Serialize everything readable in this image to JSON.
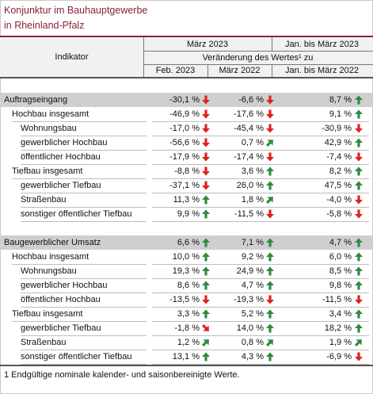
{
  "title_line1": "Konjunktur im Bauhauptgewerbe",
  "title_line2": "in Rheinland-Pfalz",
  "header": {
    "indikator": "Indikator",
    "maerz_2023": "März 2023",
    "jan_maerz_2023": "Jan. bis März 2023",
    "veraenderung": "Veränderung des Wertes¹ zu",
    "feb_2023": "Feb. 2023",
    "maerz_2022": "März 2022",
    "jan_maerz_2022": "Jan. bis März 2022"
  },
  "colors": {
    "up": "#2e8b3e",
    "down": "#e02020",
    "title": "#8b2335",
    "section_bg": "#cfcfcf"
  },
  "rows": [
    {
      "label": "Auftragseingang",
      "level": 0,
      "section": true,
      "v": [
        [
          "-30,1 %",
          "down"
        ],
        [
          "-6,6 %",
          "down"
        ],
        [
          "8,7 %",
          "up"
        ]
      ]
    },
    {
      "label": "Hochbau insgesamt",
      "level": 1,
      "v": [
        [
          "-46,9 %",
          "down"
        ],
        [
          "-17,6 %",
          "down"
        ],
        [
          "9,1 %",
          "up"
        ]
      ]
    },
    {
      "label": "Wohnungsbau",
      "level": 2,
      "v": [
        [
          "-17,0 %",
          "down"
        ],
        [
          "-45,4 %",
          "down"
        ],
        [
          "-30,9 %",
          "down"
        ]
      ]
    },
    {
      "label": "gewerblicher Hochbau",
      "level": 2,
      "v": [
        [
          "-56,6 %",
          "down"
        ],
        [
          "0,7 %",
          "up-right"
        ],
        [
          "42,9 %",
          "up"
        ]
      ]
    },
    {
      "label": "öffentlicher Hochbau",
      "level": 2,
      "v": [
        [
          "-17,9 %",
          "down"
        ],
        [
          "-17,4 %",
          "down"
        ],
        [
          "-7,4 %",
          "down"
        ]
      ]
    },
    {
      "label": "Tiefbau insgesamt",
      "level": 1,
      "v": [
        [
          "-8,8 %",
          "down"
        ],
        [
          "3,6 %",
          "up"
        ],
        [
          "8,2 %",
          "up"
        ]
      ]
    },
    {
      "label": "gewerblicher Tiefbau",
      "level": 2,
      "v": [
        [
          "-37,1 %",
          "down"
        ],
        [
          "26,0 %",
          "up"
        ],
        [
          "47,5 %",
          "up"
        ]
      ]
    },
    {
      "label": "Straßenbau",
      "level": 2,
      "v": [
        [
          "11,3 %",
          "up"
        ],
        [
          "1,8 %",
          "up-right"
        ],
        [
          "-4,0 %",
          "down"
        ]
      ]
    },
    {
      "label": "sonstiger öffentlicher Tiefbau",
      "level": 2,
      "v": [
        [
          "9,9 %",
          "up"
        ],
        [
          "-11,5 %",
          "down"
        ],
        [
          "-5,8 %",
          "down"
        ]
      ]
    },
    {
      "label": "Baugewerblicher Umsatz",
      "level": 0,
      "section": true,
      "v": [
        [
          "6,6 %",
          "up"
        ],
        [
          "7,1 %",
          "up"
        ],
        [
          "4,7 %",
          "up"
        ]
      ]
    },
    {
      "label": "Hochbau insgesamt",
      "level": 1,
      "v": [
        [
          "10,0 %",
          "up"
        ],
        [
          "9,2 %",
          "up"
        ],
        [
          "6,0 %",
          "up"
        ]
      ]
    },
    {
      "label": "Wohnungsbau",
      "level": 2,
      "v": [
        [
          "19,3 %",
          "up"
        ],
        [
          "24,9 %",
          "up"
        ],
        [
          "8,5 %",
          "up"
        ]
      ]
    },
    {
      "label": "gewerblicher Hochbau",
      "level": 2,
      "v": [
        [
          "8,6 %",
          "up"
        ],
        [
          "4,7 %",
          "up"
        ],
        [
          "9,8 %",
          "up"
        ]
      ]
    },
    {
      "label": "öffentlicher Hochbau",
      "level": 2,
      "v": [
        [
          "-13,5 %",
          "down"
        ],
        [
          "-19,3 %",
          "down"
        ],
        [
          "-11,5 %",
          "down"
        ]
      ]
    },
    {
      "label": "Tiefbau insgesamt",
      "level": 1,
      "v": [
        [
          "3,3 %",
          "up"
        ],
        [
          "5,2 %",
          "up"
        ],
        [
          "3,4 %",
          "up"
        ]
      ]
    },
    {
      "label": "gewerblicher Tiefbau",
      "level": 2,
      "v": [
        [
          "-1,8 %",
          "down-right"
        ],
        [
          "14,0 %",
          "up"
        ],
        [
          "18,2 %",
          "up"
        ]
      ]
    },
    {
      "label": "Straßenbau",
      "level": 2,
      "v": [
        [
          "1,2 %",
          "up-right"
        ],
        [
          "0,8 %",
          "up-right"
        ],
        [
          "1,9 %",
          "up-right"
        ]
      ]
    },
    {
      "label": "sonstiger öffentlicher Tiefbau",
      "level": 2,
      "v": [
        [
          "13,1 %",
          "up"
        ],
        [
          "4,3 %",
          "up"
        ],
        [
          "-6,9 %",
          "down"
        ]
      ]
    }
  ],
  "footnote": "1 Endgültige nominale kalender- und saisonbereinigte Werte."
}
